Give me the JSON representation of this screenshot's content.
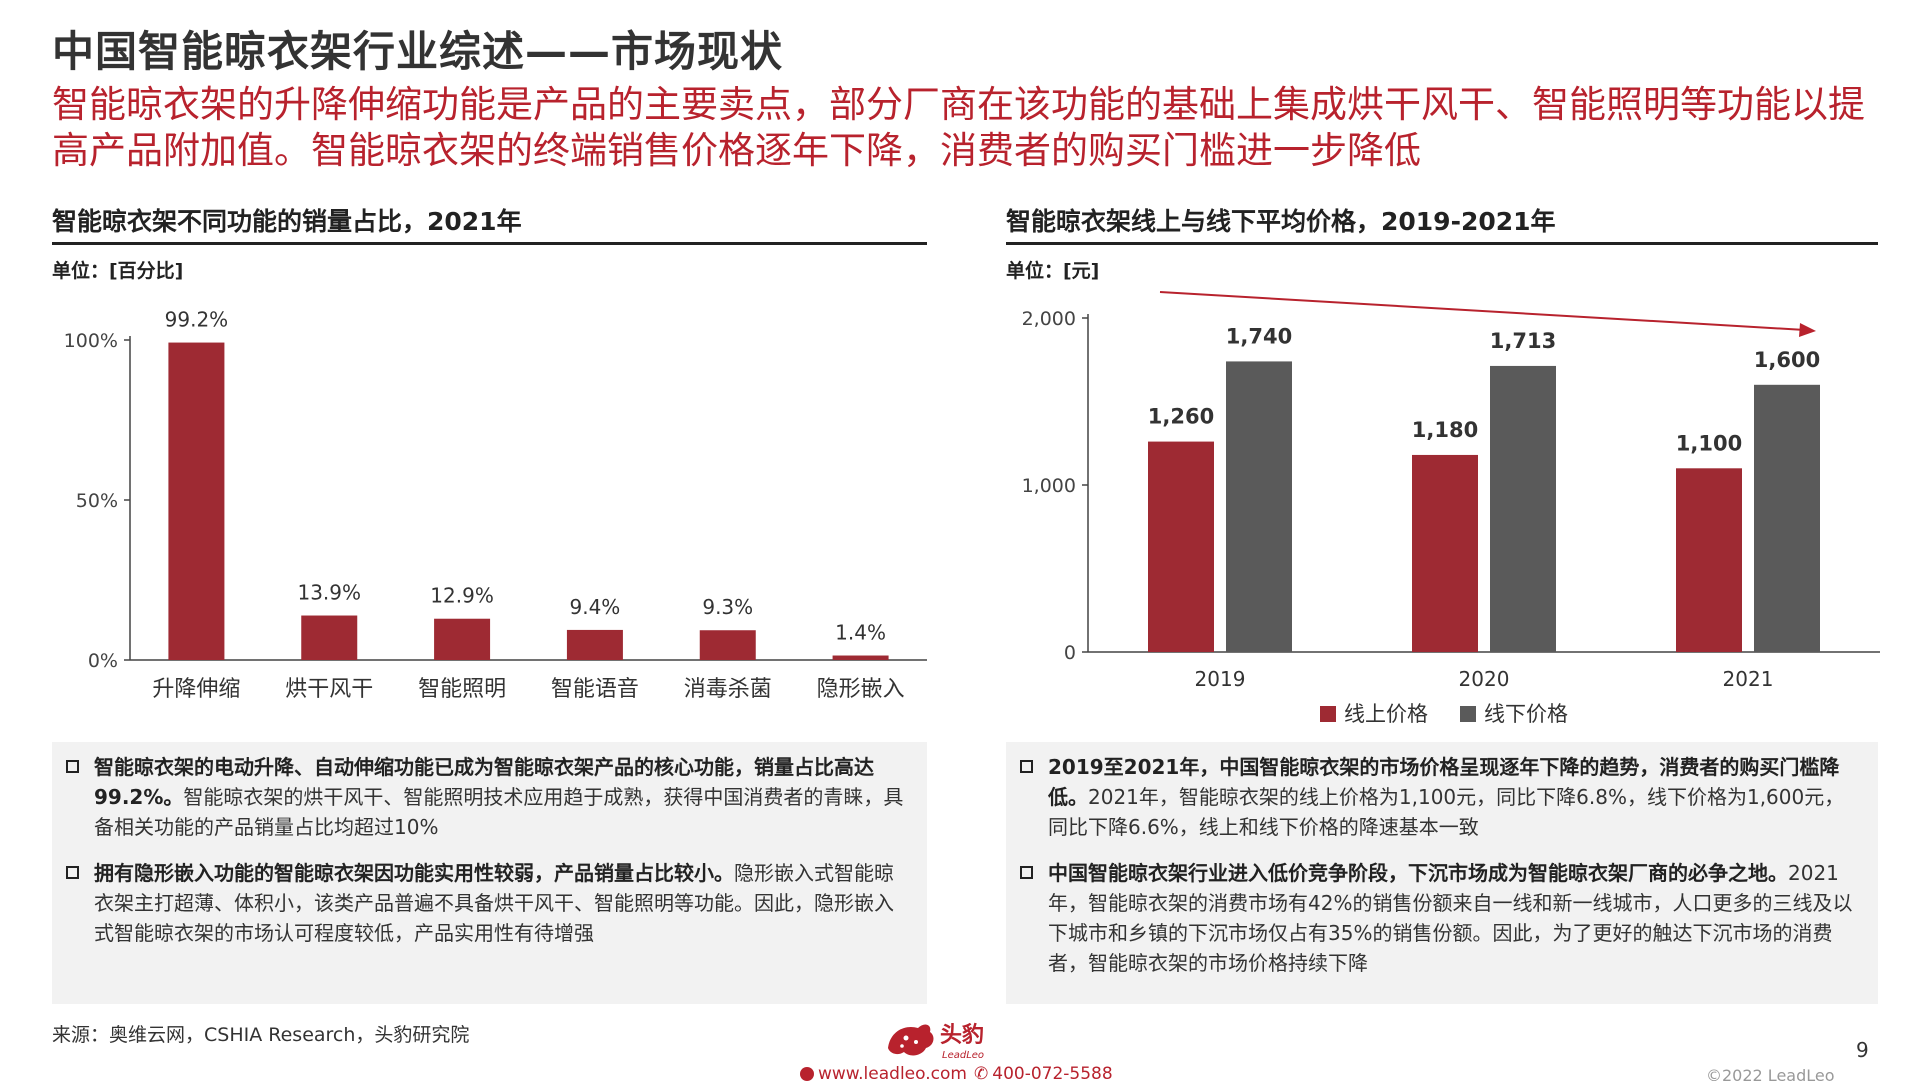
{
  "header": {
    "title": "中国智能晾衣架行业综述——市场现状",
    "subtitle": "智能晾衣架的升降伸缩功能是产品的主要卖点，部分厂商在该功能的基础上集成烘干风干、智能照明等功能以提高产品附加值。智能晾衣架的终端销售价格逐年下降，消费者的购买门槛进一步降低"
  },
  "left_panel": {
    "title": "智能晾衣架不同功能的销量占比，2021年",
    "unit": "单位：[百分比]",
    "notes": [
      {
        "lead": "智能晾衣架的电动升降、自动伸缩功能已成为智能晾衣架产品的核心功能，销量占比高达99.2%。",
        "body": "智能晾衣架的烘干风干、智能照明技术应用趋于成熟，获得中国消费者的青睐，具备相关功能的产品销量占比均超过10%"
      },
      {
        "lead": "拥有隐形嵌入功能的智能晾衣架因功能实用性较弱，产品销量占比较小。",
        "body": "隐形嵌入式智能晾衣架主打超薄、体积小，该类产品普遍不具备烘干风干、智能照明等功能。因此，隐形嵌入式智能晾衣架的市场认可程度较低，产品实用性有待增强"
      }
    ]
  },
  "right_panel": {
    "title": "智能晾衣架线上与线下平均价格，2019-2021年",
    "unit": "单位：[元]",
    "notes": [
      {
        "lead": "2019至2021年，中国智能晾衣架的市场价格呈现逐年下降的趋势，消费者的购买门槛降低。",
        "body": "2021年，智能晾衣架的线上价格为1,100元，同比下降6.8%，线下价格为1,600元，同比下降6.6%，线上和线下价格的降速基本一致"
      },
      {
        "lead": "中国智能晾衣架行业进入低价竞争阶段，下沉市场成为智能晾衣架厂商的必争之地。",
        "body": "2021年，智能晾衣架的消费市场有42%的销售份额来自一线和新一线城市，人口更多的三线及以下城市和乡镇的下沉市场仅占有35%的销售份额。因此，为了更好的触达下沉市场的消费者，智能晾衣架的市场价格持续下降"
      }
    ]
  },
  "footer": {
    "source": "来源：奥维云网，CSHIA Research，头豹研究院",
    "logo_text": "头豹",
    "logo_sub": "LeadLeo",
    "website": "www.leadleo.com",
    "phone": "400-072-5588",
    "page_number": "9",
    "copyright": "©2022 LeadLeo"
  },
  "colors": {
    "accent": "#b8222d",
    "bar_primary": "#9e2a33",
    "bar_secondary": "#5a5a5a"
  },
  "chart_data": [
    {
      "type": "bar",
      "categories": [
        "升降伸缩",
        "烘干风干",
        "智能照明",
        "智能语音",
        "消毒杀菌",
        "隐形嵌入"
      ],
      "values": [
        99.2,
        13.9,
        12.9,
        9.4,
        9.3,
        1.4
      ],
      "value_labels": [
        "99.2%",
        "13.9%",
        "12.9%",
        "9.4%",
        "9.3%",
        "1.4%"
      ],
      "ylim": [
        0,
        100
      ],
      "yticks": [
        0,
        50,
        100
      ],
      "ytick_labels": [
        "0%",
        "50%",
        "100%"
      ],
      "grid": false
    },
    {
      "type": "bar",
      "categories": [
        "2019",
        "2020",
        "2021"
      ],
      "series": [
        {
          "name": "线上价格",
          "values": [
            1260,
            1180,
            1100
          ],
          "labels": [
            "1,260",
            "1,180",
            "1,100"
          ]
        },
        {
          "name": "线下价格",
          "values": [
            1740,
            1713,
            1600
          ],
          "labels": [
            "1,740",
            "1,713",
            "1,600"
          ]
        }
      ],
      "ylim": [
        0,
        2000
      ],
      "yticks": [
        0,
        1000,
        2000
      ],
      "ytick_labels": [
        "0",
        "1,000",
        "2,000"
      ],
      "legend": "bottom",
      "trend_arrow": "down",
      "grid": false
    }
  ]
}
